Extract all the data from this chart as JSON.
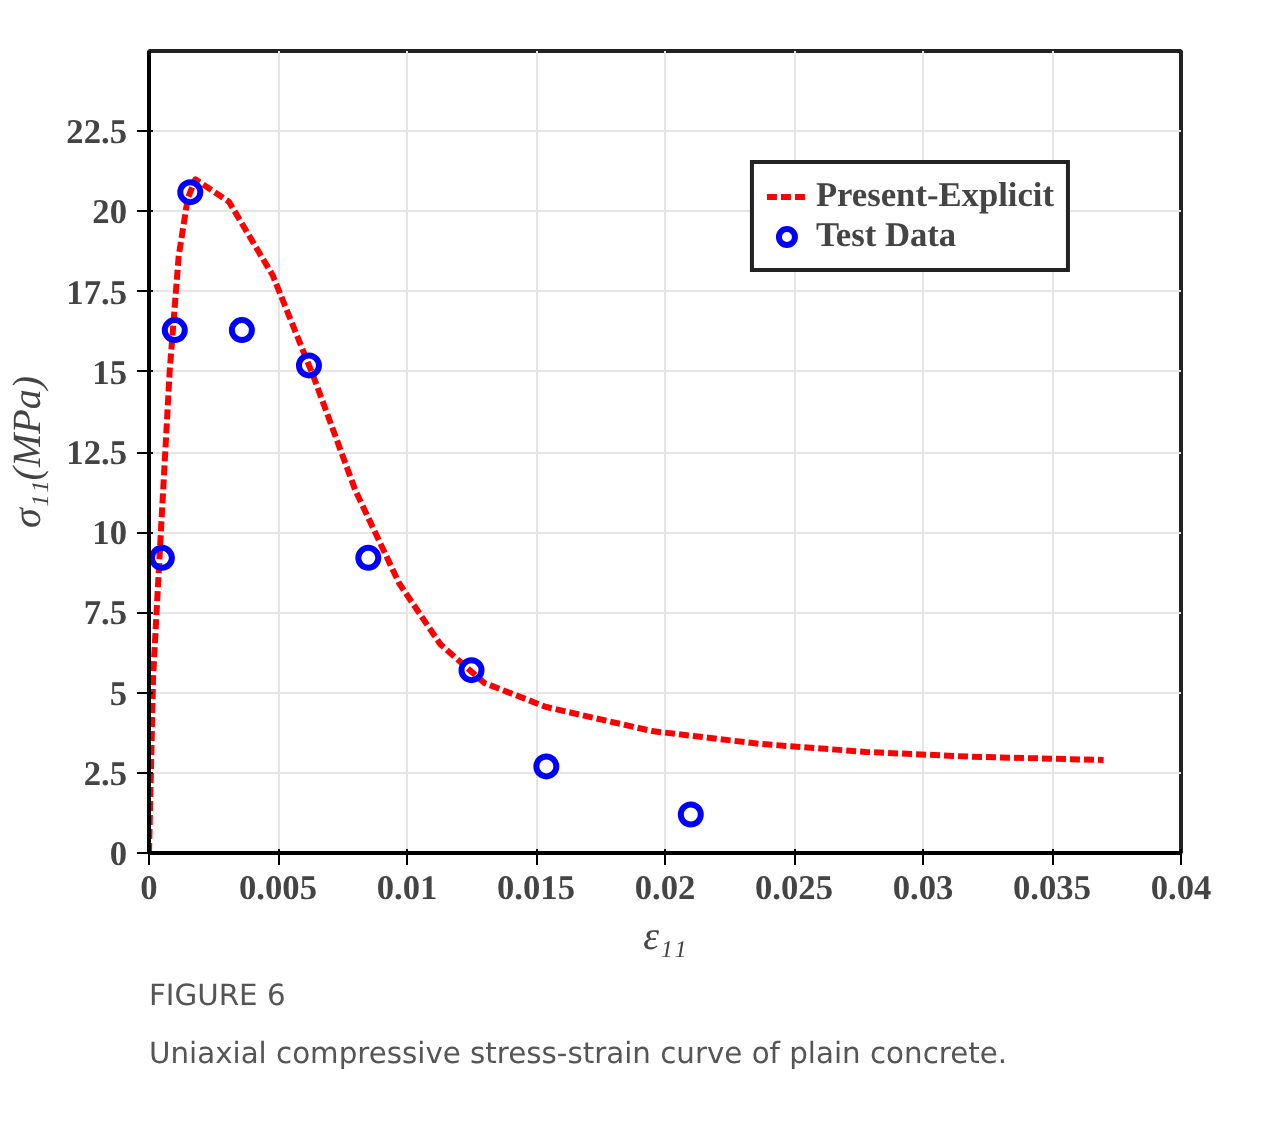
{
  "chart_data": {
    "type": "line",
    "xlabel": "ε₁₁",
    "ylabel": "σ₁₁(MPa)",
    "annotations": [
      "FIGURE 6",
      "Uniaxial compressive stress-strain curve of plain concrete."
    ],
    "xlim": [
      0,
      0.04
    ],
    "ylim": [
      0,
      25
    ],
    "xticks": [
      0,
      0.005,
      0.01,
      0.015,
      0.02,
      0.025,
      0.03,
      0.035,
      0.04
    ],
    "yticks": [
      0,
      2.5,
      5,
      7.5,
      10,
      12.5,
      15,
      17.5,
      20,
      22.5
    ],
    "grid": true,
    "legend": "top right",
    "series": [
      {
        "name": "Present-Explicit",
        "color": "#ff0000",
        "line_style": "dashed",
        "marker": "none",
        "x": [
          0,
          0.00016,
          0.0005,
          0.0008,
          0.00115,
          0.0015,
          0.0018,
          0.0031,
          0.0048,
          0.0064,
          0.008,
          0.0097,
          0.0113,
          0.013,
          0.0154,
          0.0195,
          0.0237,
          0.0278,
          0.0319,
          0.037
        ],
        "values": [
          0,
          5.5,
          10.6,
          15,
          18.6,
          20.4,
          21.0,
          20.3,
          18.0,
          14.8,
          11.3,
          8.4,
          6.5,
          5.3,
          4.55,
          3.8,
          3.4,
          3.15,
          3.0,
          2.9
        ]
      },
      {
        "name": "Test Data",
        "type": "scatter",
        "color": "#0000ff",
        "marker": "circle",
        "x": [
          0.0005,
          0.001,
          0.0016,
          0.0036,
          0.0062,
          0.0085,
          0.0125,
          0.0154,
          0.021
        ],
        "values": [
          9.2,
          16.3,
          20.6,
          16.3,
          15.2,
          9.2,
          5.7,
          2.7,
          1.2
        ]
      }
    ]
  }
}
